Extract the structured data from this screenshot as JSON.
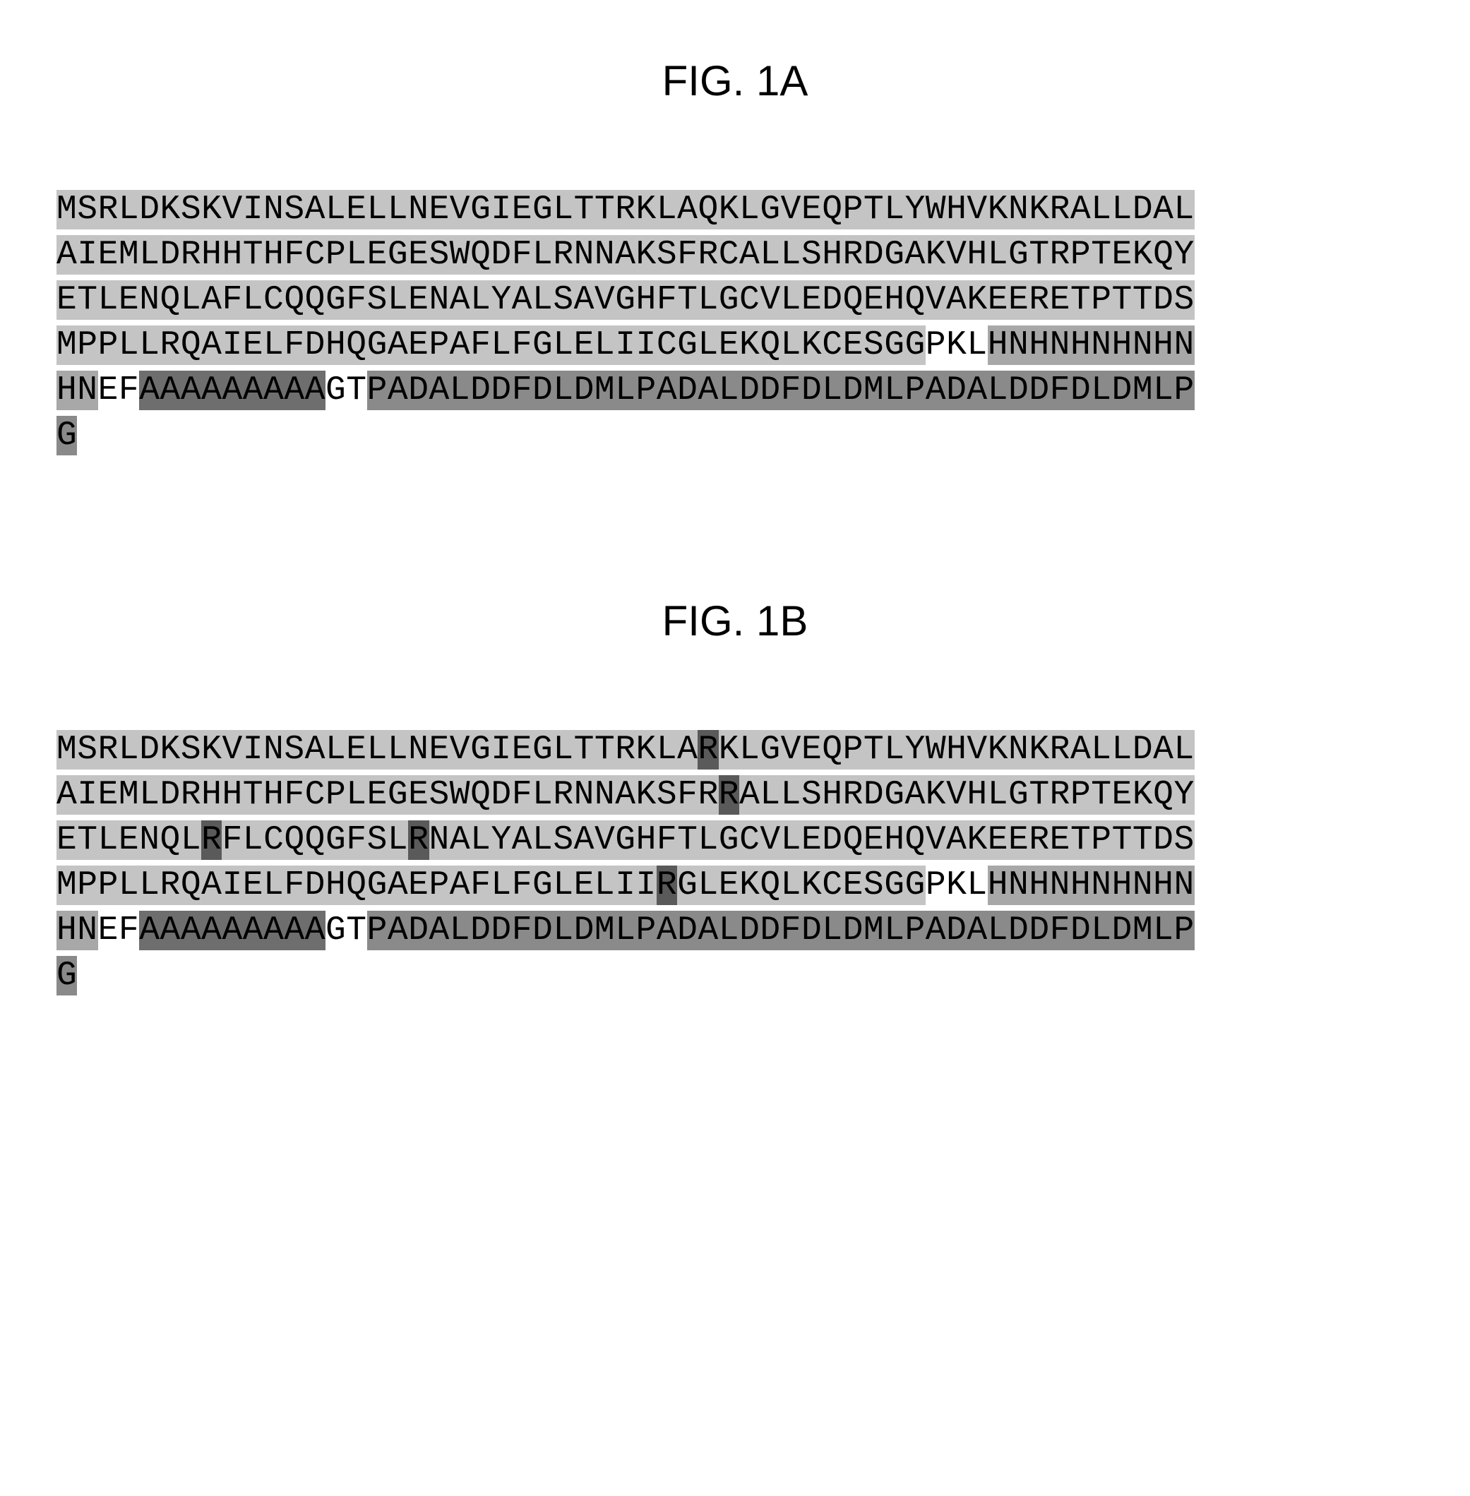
{
  "colors": {
    "background": "#ffffff",
    "light_gray": "#c4c4c4",
    "medium_gray": "#a8a8a8",
    "dark_gray": "#8a8a8a",
    "darker_gray": "#6e6e6e",
    "very_dark_gray": "#5a5a5a",
    "white": "#ffffff",
    "text": "#000000"
  },
  "figA": {
    "title": "FIG. 1A",
    "lines": [
      [
        {
          "text": "MSRLDKSKVINSALELLNEVGIEGLTTRKLAQKLGVEQPTLYWHVKNKRALLDAL",
          "bg": "light_gray"
        }
      ],
      [
        {
          "text": "AIEMLDRHHTHFCPLEGESWQDFLRNNAKSFRCALLSHRDGAKVHLGTRPTEKQY",
          "bg": "light_gray"
        }
      ],
      [
        {
          "text": "ETLENQLAFLCQQGFSLENALYALSAVGHFTLGCVLEDQEHQVAKEERETPTTDS",
          "bg": "light_gray"
        }
      ],
      [
        {
          "text": "MPPLLRQAIELFDHQGAEPAFLFGLELIICGLEKQLKCESGG",
          "bg": "light_gray"
        },
        {
          "text": "PKL",
          "bg": "white"
        },
        {
          "text": "HNHNHNHNHN",
          "bg": "medium_gray"
        }
      ],
      [
        {
          "text": "HN",
          "bg": "medium_gray"
        },
        {
          "text": "EF",
          "bg": "white"
        },
        {
          "text": "AAAAAAAAA",
          "bg": "darker_gray"
        },
        {
          "text": "GT",
          "bg": "white"
        },
        {
          "text": "PADALDDFDLDMLPADALDDFDLDMLPADALDDFDLDMLP",
          "bg": "dark_gray"
        }
      ],
      [
        {
          "text": "G",
          "bg": "dark_gray"
        }
      ]
    ]
  },
  "figB": {
    "title": "FIG. 1B",
    "lines": [
      [
        {
          "text": "MSRLDKSKVINSALELLNEVGIEGLTTRKLA",
          "bg": "light_gray"
        },
        {
          "text": "R",
          "bg": "very_dark_gray"
        },
        {
          "text": "KLGVEQPTLYWHVKNKRALLDAL",
          "bg": "light_gray"
        }
      ],
      [
        {
          "text": "AIEMLDRHHTHFCPLEGESWQDFLRNNAKSFR",
          "bg": "light_gray"
        },
        {
          "text": "R",
          "bg": "very_dark_gray"
        },
        {
          "text": "ALLSHRDGAKVHLGTRPTEKQY",
          "bg": "light_gray"
        }
      ],
      [
        {
          "text": "ETLENQL",
          "bg": "light_gray"
        },
        {
          "text": "R",
          "bg": "very_dark_gray"
        },
        {
          "text": "FLCQQGFSL",
          "bg": "light_gray"
        },
        {
          "text": "R",
          "bg": "very_dark_gray"
        },
        {
          "text": "NALYALSAVGHFTLGCVLEDQEHQVAKEERETPTTDS",
          "bg": "light_gray"
        }
      ],
      [
        {
          "text": "MPPLLRQAIELFDHQGAEPAFLFGLELII",
          "bg": "light_gray"
        },
        {
          "text": "R",
          "bg": "very_dark_gray"
        },
        {
          "text": "GLEKQLKCESGG",
          "bg": "light_gray"
        },
        {
          "text": "PKL",
          "bg": "white"
        },
        {
          "text": "HNHNHNHNHN",
          "bg": "medium_gray"
        }
      ],
      [
        {
          "text": "HN",
          "bg": "medium_gray"
        },
        {
          "text": "EF",
          "bg": "white"
        },
        {
          "text": "AAAAAAAAA",
          "bg": "darker_gray"
        },
        {
          "text": "GT",
          "bg": "white"
        },
        {
          "text": "PADALDDFDLDMLPADALDDFDLDMLPADALDDFDLDMLP",
          "bg": "dark_gray"
        }
      ],
      [
        {
          "text": "G",
          "bg": "dark_gray"
        }
      ]
    ]
  }
}
